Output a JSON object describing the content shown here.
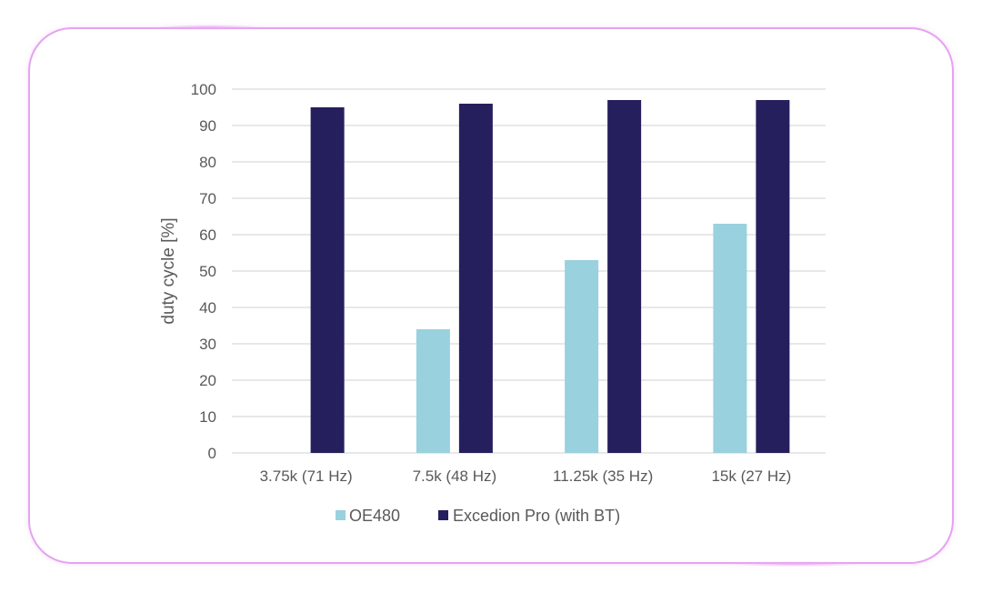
{
  "chart_data": {
    "type": "bar",
    "categories": [
      "3.75k (71 Hz)",
      "7.5k (48 Hz)",
      "11.25k (35 Hz)",
      "15k (27 Hz)"
    ],
    "series": [
      {
        "name": "OE480",
        "values": [
          0,
          34,
          53,
          63
        ],
        "color": "#99d1de"
      },
      {
        "name": "Excedion Pro (with BT)",
        "values": [
          95,
          96,
          97,
          97
        ],
        "color": "#251f5e"
      }
    ],
    "title": "",
    "xlabel": "",
    "ylabel": "duty cycle [%]",
    "ylim": [
      0,
      100
    ],
    "yticks": [
      0,
      10,
      20,
      30,
      40,
      50,
      60,
      70,
      80,
      90,
      100
    ],
    "grid": "horizontal",
    "legend": "bottom",
    "gridColor": "#d9d9d9",
    "frameColor": "#e4a4f0"
  }
}
